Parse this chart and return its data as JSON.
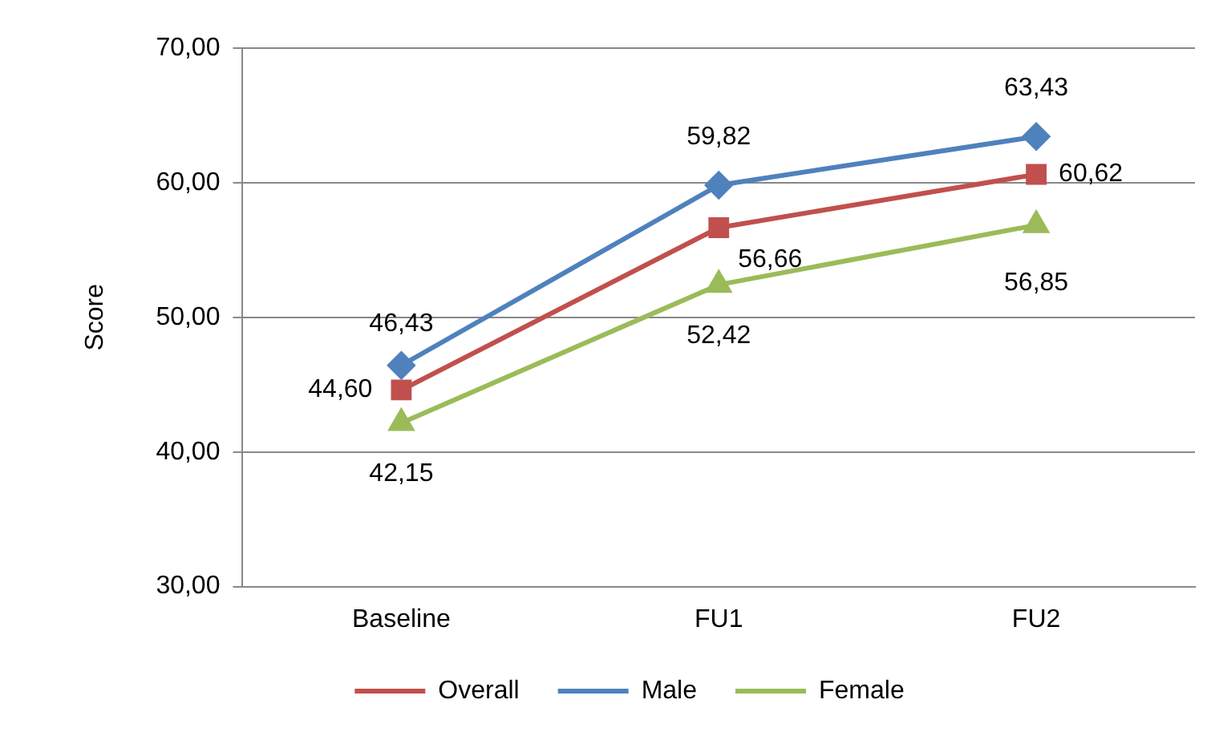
{
  "chart_data": {
    "type": "line",
    "ylabel": "Score",
    "categories": [
      "Baseline",
      "FU1",
      "FU2"
    ],
    "series": [
      {
        "name": "Overall",
        "color": "#c0504d",
        "marker": "square",
        "values": [
          44.6,
          56.66,
          60.62
        ],
        "value_labels": [
          "44,60",
          "56,66",
          "60,62"
        ]
      },
      {
        "name": "Male",
        "color": "#4f81bd",
        "marker": "diamond",
        "values": [
          46.43,
          59.82,
          63.43
        ],
        "value_labels": [
          "46,43",
          "59,82",
          "63,43"
        ]
      },
      {
        "name": "Female",
        "color": "#9bbb59",
        "marker": "triangle",
        "values": [
          42.15,
          52.42,
          56.85
        ],
        "value_labels": [
          "42,15",
          "52,42",
          "56,85"
        ]
      }
    ],
    "ylim": [
      30,
      70
    ],
    "yticks": [
      {
        "value": 30,
        "label": "30,00"
      },
      {
        "value": 40,
        "label": "40,00"
      },
      {
        "value": 50,
        "label": "50,00"
      },
      {
        "value": 60,
        "label": "60,00"
      },
      {
        "value": 70,
        "label": "70,00"
      }
    ],
    "grid": "y",
    "legend": "bottom"
  }
}
